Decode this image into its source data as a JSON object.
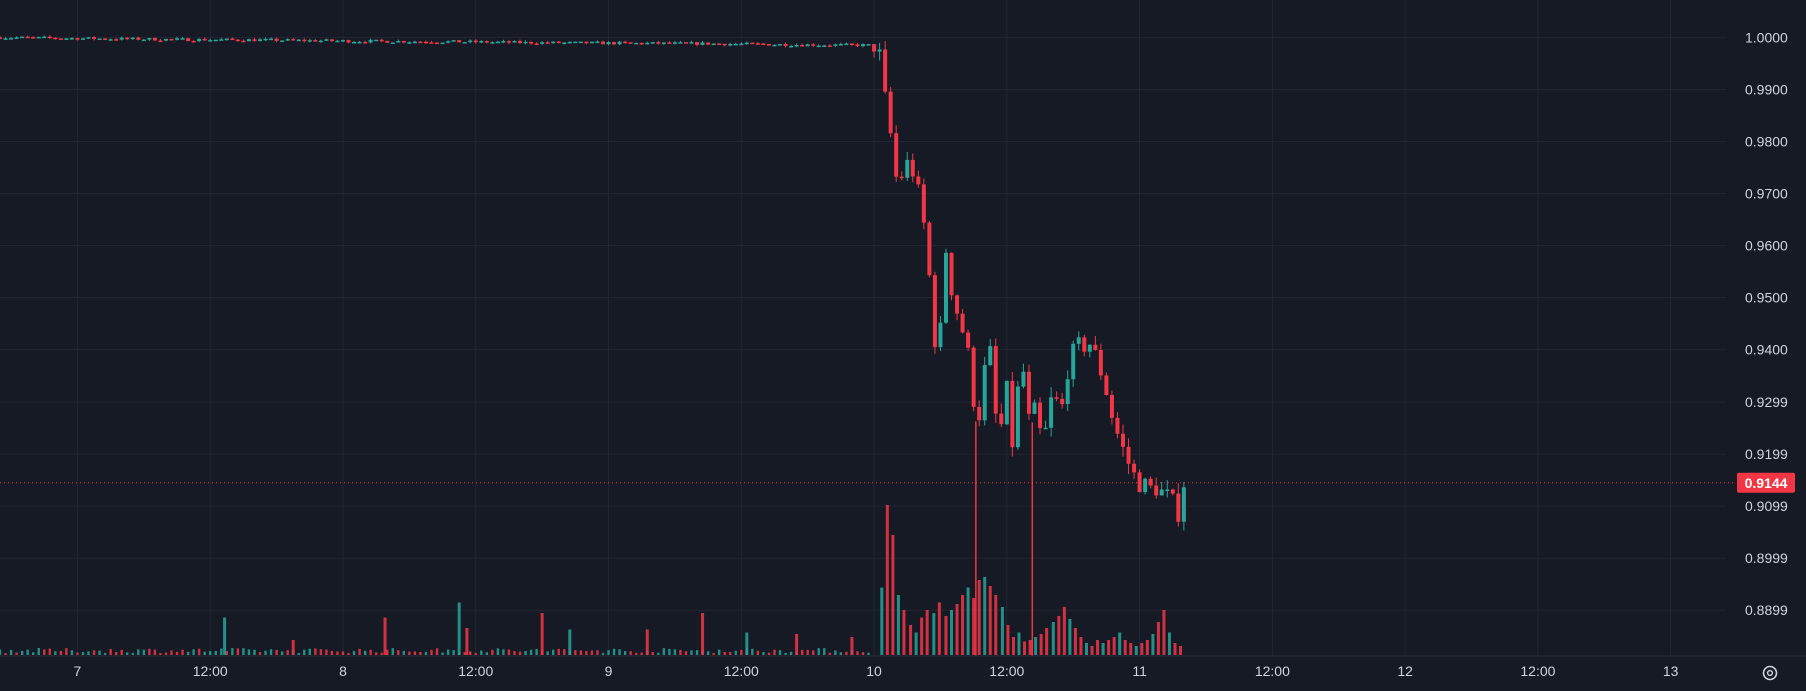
{
  "chart_data": {
    "type": "candlestick",
    "y_axis": {
      "position": "right",
      "ticks": [
        "1.0000",
        "0.9900",
        "0.9800",
        "0.9700",
        "0.9600",
        "0.9500",
        "0.9400",
        "0.9299",
        "0.9199",
        "0.9099",
        "0.8999",
        "0.8899"
      ],
      "range": [
        0.8811,
        1.0045
      ]
    },
    "x_axis": {
      "ticks": [
        "7",
        "12:00",
        "8",
        "12:00",
        "9",
        "12:00",
        "10",
        "12:00",
        "11",
        "12:00",
        "12",
        "12:00",
        "13"
      ],
      "tick_hours": [
        24,
        36,
        48,
        60,
        72,
        84,
        96,
        108,
        120,
        132,
        144,
        156,
        168
      ],
      "range_hours": [
        17,
        173
      ]
    },
    "last_price": {
      "value": 0.9144,
      "label": "0.9144"
    },
    "price_path": [
      [
        17.0,
        1.0
      ],
      [
        25.0,
        0.9998
      ],
      [
        33.0,
        0.9996
      ],
      [
        41.0,
        0.9995
      ],
      [
        49.0,
        0.9993
      ],
      [
        57.0,
        0.9992
      ],
      [
        65.0,
        0.999
      ],
      [
        73.0,
        0.9989
      ],
      [
        81.0,
        0.9988
      ],
      [
        89.0,
        0.9986
      ],
      [
        96.0,
        0.9985
      ],
      [
        96.4,
        0.9983
      ],
      [
        96.9,
        0.989
      ],
      [
        97.3,
        0.9855
      ],
      [
        97.9,
        0.973
      ],
      [
        98.5,
        0.9735
      ],
      [
        99.2,
        0.9765
      ],
      [
        99.8,
        0.972
      ],
      [
        100.4,
        0.966
      ],
      [
        101.0,
        0.954
      ],
      [
        101.5,
        0.942
      ],
      [
        102.1,
        0.944
      ],
      [
        102.6,
        0.963
      ],
      [
        103.1,
        0.949
      ],
      [
        103.6,
        0.947
      ],
      [
        104.2,
        0.942
      ],
      [
        104.7,
        0.937
      ],
      [
        105.3,
        0.924
      ],
      [
        105.8,
        0.933
      ],
      [
        106.4,
        0.942
      ],
      [
        106.9,
        0.928
      ],
      [
        107.4,
        0.924
      ],
      [
        108.0,
        0.932
      ],
      [
        108.5,
        0.922
      ],
      [
        109.1,
        0.934
      ],
      [
        109.6,
        0.936
      ],
      [
        110.1,
        0.924
      ],
      [
        110.7,
        0.93
      ],
      [
        111.2,
        0.92
      ],
      [
        111.7,
        0.927
      ],
      [
        112.3,
        0.933
      ],
      [
        112.8,
        0.925
      ],
      [
        113.3,
        0.935
      ],
      [
        113.8,
        0.938
      ],
      [
        114.3,
        0.941
      ],
      [
        114.8,
        0.94
      ],
      [
        115.3,
        0.942
      ],
      [
        115.8,
        0.94
      ],
      [
        116.3,
        0.937
      ],
      [
        116.8,
        0.934
      ],
      [
        117.3,
        0.929
      ],
      [
        117.8,
        0.925
      ],
      [
        118.3,
        0.922
      ],
      [
        118.8,
        0.919
      ],
      [
        119.3,
        0.917
      ],
      [
        119.8,
        0.914
      ],
      [
        120.3,
        0.915
      ],
      [
        120.8,
        0.912
      ],
      [
        121.3,
        0.915
      ],
      [
        121.8,
        0.911
      ],
      [
        122.3,
        0.915
      ],
      [
        122.8,
        0.907
      ],
      [
        123.2,
        0.914
      ],
      [
        123.6,
        0.907
      ],
      [
        124.0,
        0.9144
      ]
    ],
    "wick_spikes": [
      {
        "t": 105.2,
        "low": 0.8812
      },
      {
        "t": 110.3,
        "low": 0.8812
      }
    ],
    "volume": {
      "baseline_hours": [
        17,
        96
      ],
      "spikes": [
        [
          37.3,
          0.25
        ],
        [
          43.5,
          0.1
        ],
        [
          51.8,
          0.25
        ],
        [
          58.5,
          0.35
        ],
        [
          59.2,
          0.18
        ],
        [
          66.0,
          0.28
        ],
        [
          68.5,
          0.17
        ],
        [
          75.5,
          0.17
        ],
        [
          80.5,
          0.28
        ],
        [
          84.5,
          0.15
        ],
        [
          89.0,
          0.14
        ],
        [
          94.0,
          0.12
        ],
        [
          96.7,
          0.45
        ],
        [
          97.2,
          1.0
        ],
        [
          97.7,
          0.8
        ],
        [
          98.2,
          0.4
        ],
        [
          98.7,
          0.3
        ],
        [
          99.3,
          0.2
        ],
        [
          99.8,
          0.15
        ],
        [
          100.3,
          0.25
        ],
        [
          100.8,
          0.3
        ],
        [
          101.4,
          0.28
        ],
        [
          101.9,
          0.35
        ],
        [
          102.5,
          0.26
        ],
        [
          103.0,
          0.3
        ],
        [
          103.5,
          0.34
        ],
        [
          104.0,
          0.4
        ],
        [
          104.5,
          0.45
        ],
        [
          105.0,
          0.38
        ],
        [
          105.5,
          0.5
        ],
        [
          106.0,
          0.52
        ],
        [
          106.5,
          0.46
        ],
        [
          107.0,
          0.4
        ],
        [
          107.6,
          0.32
        ],
        [
          108.1,
          0.2
        ],
        [
          108.6,
          0.12
        ],
        [
          109.1,
          0.15
        ],
        [
          109.6,
          0.09
        ],
        [
          110.1,
          0.1
        ],
        [
          110.6,
          0.12
        ],
        [
          111.1,
          0.14
        ],
        [
          111.6,
          0.18
        ],
        [
          112.2,
          0.22
        ],
        [
          112.7,
          0.26
        ],
        [
          113.2,
          0.32
        ],
        [
          113.7,
          0.24
        ],
        [
          114.2,
          0.18
        ],
        [
          114.7,
          0.12
        ],
        [
          115.2,
          0.08
        ],
        [
          115.7,
          0.06
        ],
        [
          116.2,
          0.1
        ],
        [
          116.7,
          0.08
        ],
        [
          117.2,
          0.1
        ],
        [
          117.7,
          0.12
        ],
        [
          118.2,
          0.15
        ],
        [
          118.7,
          0.1
        ],
        [
          119.2,
          0.08
        ],
        [
          119.7,
          0.06
        ],
        [
          120.2,
          0.08
        ],
        [
          120.7,
          0.1
        ],
        [
          121.2,
          0.14
        ],
        [
          121.7,
          0.22
        ],
        [
          122.2,
          0.3
        ],
        [
          122.7,
          0.15
        ],
        [
          123.2,
          0.08
        ],
        [
          123.7,
          0.06
        ]
      ]
    },
    "colors": {
      "background": "#161a25",
      "grid": "#232632",
      "up": "#26a69a",
      "down": "#f23645",
      "text": "#d1d4dc",
      "badge": "#f23645"
    }
  },
  "icons": {
    "settings": "gear-icon"
  }
}
